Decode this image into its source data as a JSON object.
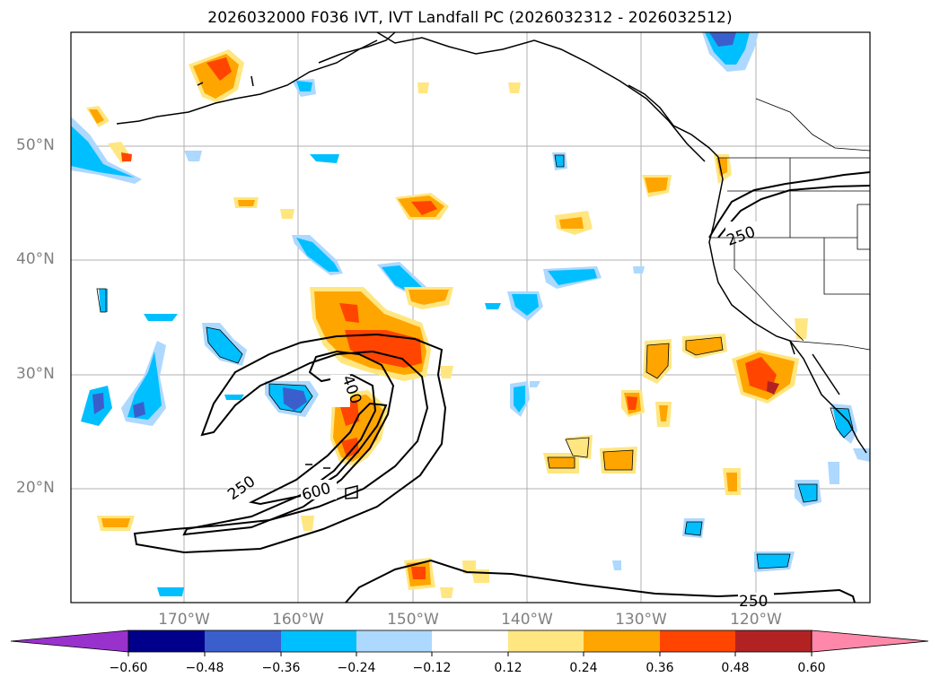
{
  "title": "2026032000 F036 IVT, IVT Landfall PC (2026032312 - 2026032512)",
  "lat_labels": [
    "50°N",
    "40°N",
    "30°N",
    "20°N"
  ],
  "lon_labels": [
    "170°W",
    "160°W",
    "150°W",
    "140°W",
    "130°W",
    "120°W"
  ],
  "contour_labels": [
    "250",
    "400",
    "600",
    "250",
    "250"
  ],
  "colorbar": {
    "ticks": [
      "−0.60",
      "−0.48",
      "−0.36",
      "−0.24",
      "−0.12",
      "0.12",
      "0.24",
      "0.36",
      "0.48",
      "0.60"
    ],
    "colors": [
      "#9932cc",
      "#00008b",
      "#3a5fcd",
      "#00bfff",
      "#add8ff",
      "#ffffff",
      "#ffe680",
      "#ffa500",
      "#ff4500",
      "#b22222",
      "#ff88aa"
    ]
  }
}
